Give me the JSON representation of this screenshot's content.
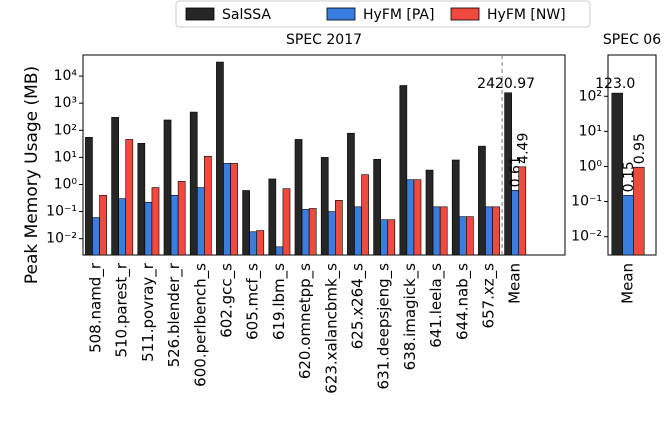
{
  "chart_data": [
    {
      "type": "bar",
      "title": "SPEC 2017",
      "ylabel": "Peak Memory Usage (MB)",
      "log_y": true,
      "categories": [
        "508.namd_r",
        "510.parest_r",
        "511.povray_r",
        "526.blender_r",
        "600.perlbench_s",
        "602.gcc_s",
        "605.mcf_s",
        "619.lbm_s",
        "620.omnetpp_s",
        "623.xalancbmk_s",
        "625.x264_s",
        "631.deepsjeng_s",
        "638.imagick_s",
        "641.leela_s",
        "644.nab_s",
        "657.xz_s",
        "Mean"
      ],
      "series": [
        {
          "name": "SalSSA",
          "color": "#262626",
          "values": [
            55,
            300,
            33,
            240,
            470,
            33000,
            0.6,
            1.6,
            46,
            10,
            78,
            8.5,
            4500,
            3.4,
            8,
            26,
            2420.97
          ],
          "value_labels": [
            null,
            null,
            null,
            null,
            null,
            null,
            null,
            null,
            null,
            null,
            null,
            null,
            null,
            null,
            null,
            null,
            "2420.97"
          ]
        },
        {
          "name": "HyFM [PA]",
          "color": "#3a7de0",
          "values": [
            0.06,
            0.3,
            0.22,
            0.4,
            0.77,
            6,
            0.018,
            0.005,
            0.12,
            0.1,
            0.15,
            0.05,
            1.5,
            0.15,
            0.065,
            0.15,
            0.61
          ],
          "value_labels": [
            null,
            null,
            null,
            null,
            null,
            null,
            null,
            null,
            null,
            null,
            null,
            null,
            null,
            null,
            null,
            null,
            "0.61"
          ]
        },
        {
          "name": "HyFM [NW]",
          "color": "#f04a3e",
          "values": [
            0.4,
            46,
            0.77,
            1.3,
            11,
            6,
            0.02,
            0.7,
            0.13,
            0.26,
            2.3,
            0.05,
            1.5,
            0.15,
            0.065,
            0.15,
            4.49
          ],
          "value_labels": [
            null,
            null,
            null,
            null,
            null,
            null,
            null,
            null,
            null,
            null,
            null,
            null,
            null,
            null,
            null,
            null,
            "4.49"
          ]
        }
      ],
      "ylim": [
        0.0025,
        60000
      ],
      "yticks": [
        {
          "value": 0.01,
          "label": "10⁻²"
        },
        {
          "value": 0.1,
          "label": "10⁻¹"
        },
        {
          "value": 1,
          "label": "10⁰"
        },
        {
          "value": 10,
          "label": "10¹"
        },
        {
          "value": 100,
          "label": "10²"
        },
        {
          "value": 1000,
          "label": "10³"
        },
        {
          "value": 10000,
          "label": "10⁴"
        }
      ]
    },
    {
      "type": "bar",
      "title": "SPEC 06",
      "log_y": true,
      "categories": [
        "Mean"
      ],
      "series": [
        {
          "color": "#262626",
          "values": [
            123.0
          ],
          "value_labels": [
            "123.0"
          ]
        },
        {
          "color": "#3a7de0",
          "values": [
            0.15
          ],
          "value_labels": [
            "0.15"
          ]
        },
        {
          "color": "#f04a3e",
          "values": [
            0.95
          ],
          "value_labels": [
            "0.95"
          ]
        }
      ],
      "ylim": [
        0.003,
        1500
      ],
      "yticks": [
        {
          "value": 0.01,
          "label": "10⁻²"
        },
        {
          "value": 0.1,
          "label": "10⁻¹"
        },
        {
          "value": 1,
          "label": "10⁰"
        },
        {
          "value": 10,
          "label": "10¹"
        },
        {
          "value": 100,
          "label": "10²"
        }
      ]
    }
  ]
}
